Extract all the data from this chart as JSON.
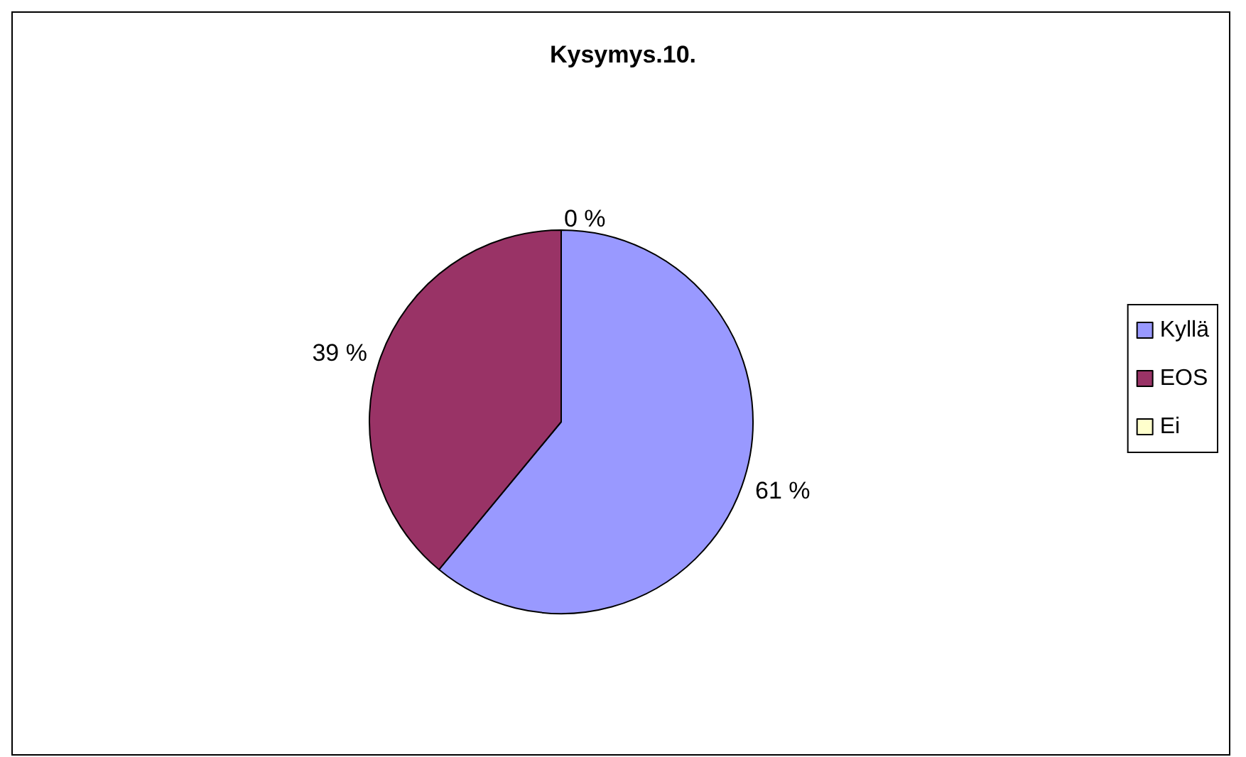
{
  "chart_data": {
    "type": "pie",
    "title": "Kysymys.10.",
    "categories": [
      "Kyllä",
      "EOS",
      "Ei"
    ],
    "values": [
      61,
      39,
      0
    ],
    "colors": [
      "#9999ff",
      "#993366",
      "#ffffcc"
    ],
    "value_labels": [
      "61 %",
      "39 %",
      "0 %"
    ],
    "legend": "right"
  }
}
